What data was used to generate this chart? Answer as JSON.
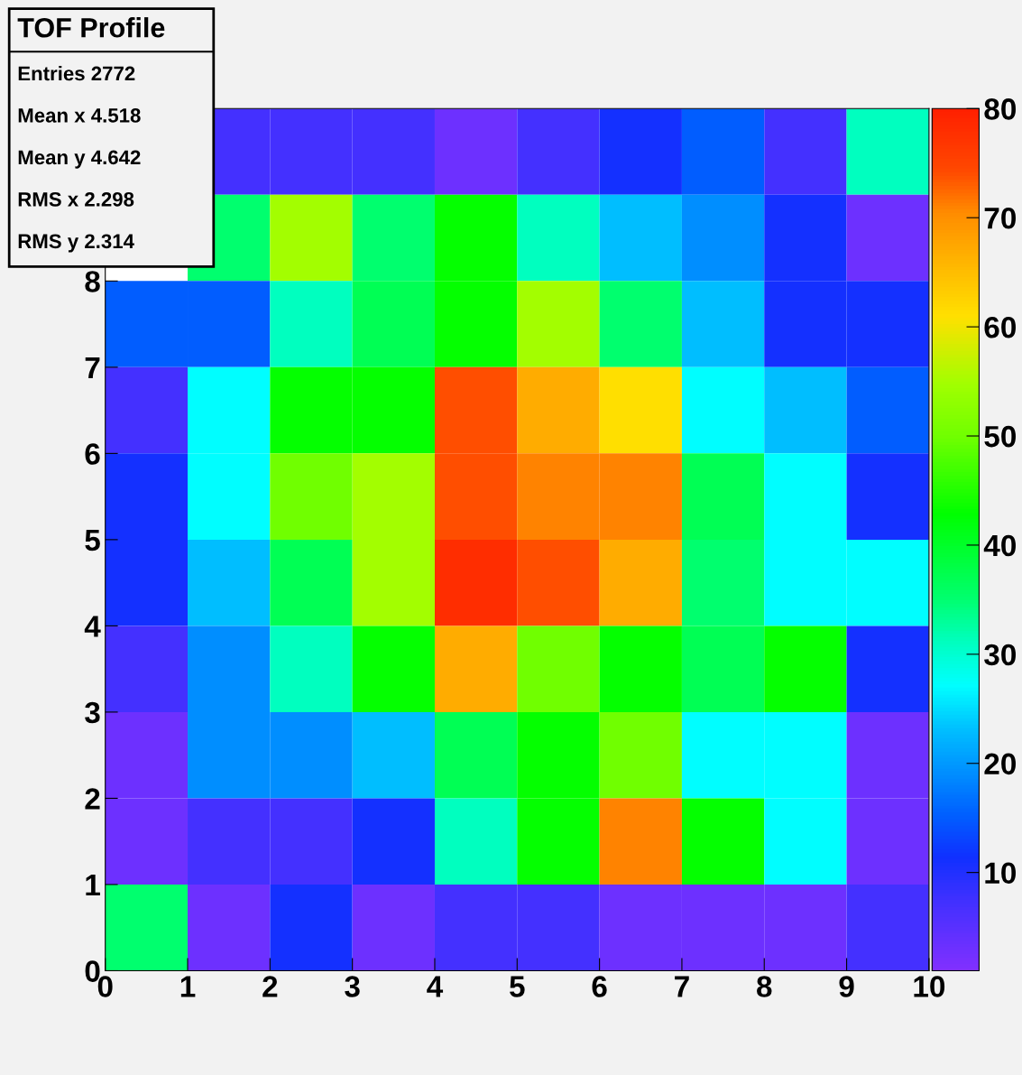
{
  "chart_data": {
    "type": "heatmap",
    "title": "TOF Profile",
    "annotations": [
      "Entries 2772",
      "Mean x 4.518",
      "Mean y 4.642",
      "RMS x 2.298",
      "RMS y 2.314"
    ],
    "xlim": [
      0,
      10
    ],
    "ylim": [
      0,
      10
    ],
    "xticks": [
      0,
      1,
      2,
      3,
      4,
      5,
      6,
      7,
      8,
      9,
      10
    ],
    "yticks": [
      0,
      1,
      2,
      3,
      4,
      5,
      6,
      7,
      8
    ],
    "clim": [
      1,
      80
    ],
    "cticks": [
      10,
      20,
      30,
      40,
      50,
      60,
      70,
      80
    ],
    "cells": [
      [
        null,
        7,
        7,
        7,
        3,
        7,
        11,
        15,
        7,
        31
      ],
      [
        null,
        35,
        55,
        35,
        43,
        31,
        23,
        19,
        11,
        3
      ],
      [
        15,
        15,
        31,
        37,
        43,
        55,
        35,
        23,
        11,
        11
      ],
      [
        7,
        27,
        43,
        43,
        74,
        67,
        61,
        27,
        23,
        15
      ],
      [
        11,
        27,
        50,
        55,
        74,
        71,
        71,
        37,
        27,
        11
      ],
      [
        11,
        23,
        37,
        55,
        78,
        74,
        67,
        35,
        27,
        27
      ],
      [
        7,
        19,
        31,
        43,
        67,
        50,
        43,
        37,
        43,
        11
      ],
      [
        3,
        19,
        19,
        23,
        37,
        43,
        50,
        27,
        27,
        3
      ],
      [
        3,
        7,
        7,
        11,
        31,
        43,
        71,
        43,
        27,
        3
      ],
      [
        35,
        3,
        11,
        3,
        7,
        7,
        3,
        3,
        3,
        7
      ]
    ]
  }
}
